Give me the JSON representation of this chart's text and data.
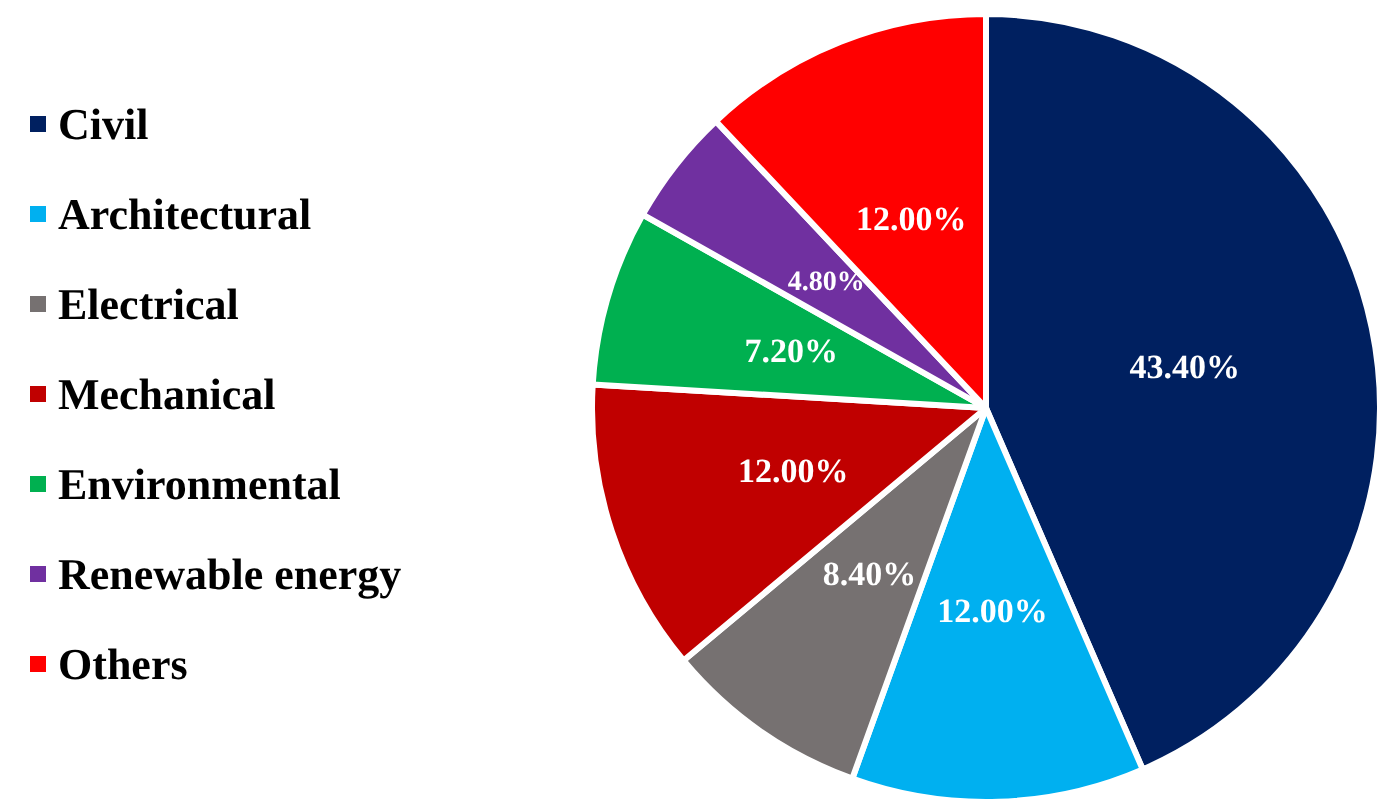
{
  "chart_data": {
    "type": "pie",
    "categories": [
      "Civil",
      "Architectural",
      "Electrical",
      "Mechanical",
      "Environmental",
      "Renewable energy",
      "Others"
    ],
    "values": [
      43.4,
      12.0,
      8.4,
      12.0,
      7.2,
      4.8,
      12.0
    ],
    "value_labels": [
      "43.40%",
      "12.00%",
      "8.40%",
      "12.00%",
      "7.20%",
      "4.80%",
      "12.00%"
    ],
    "colors": [
      "#002060",
      "#00b0f0",
      "#767171",
      "#c00000",
      "#00b050",
      "#7030a0",
      "#ff0000"
    ],
    "legend": "left"
  }
}
